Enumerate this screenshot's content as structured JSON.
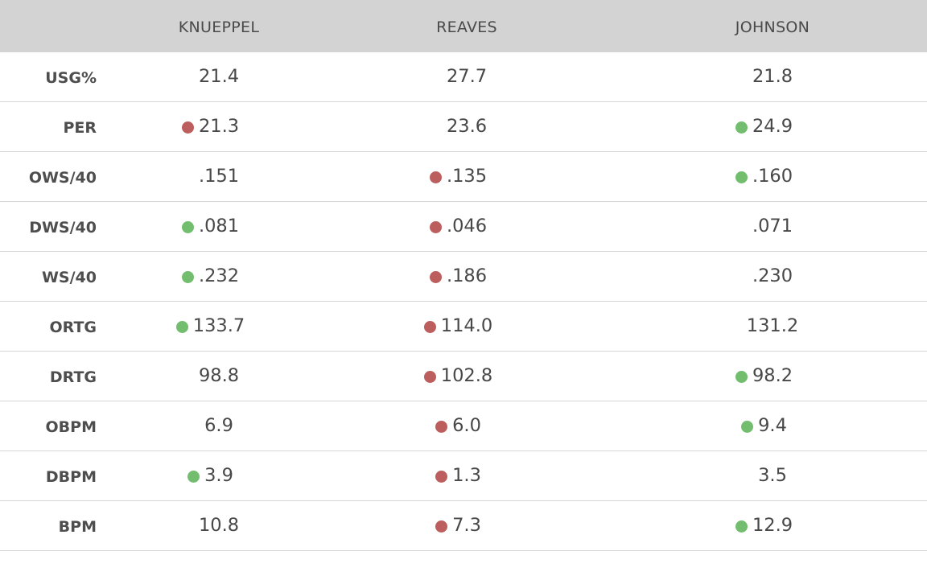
{
  "columns": [
    {
      "key": "knueppel",
      "label": "KNUEPPEL"
    },
    {
      "key": "reaves",
      "label": "REAVES"
    },
    {
      "key": "johnson",
      "label": "JOHNSON"
    }
  ],
  "colors": {
    "header_bg": "#d3d3d3",
    "good": "#72be6e",
    "bad": "#bd5e5e"
  },
  "rows": [
    {
      "label": "USG%",
      "cells": [
        {
          "value": "21.4",
          "indicator": "none"
        },
        {
          "value": "27.7",
          "indicator": "none"
        },
        {
          "value": "21.8",
          "indicator": "none"
        }
      ]
    },
    {
      "label": "PER",
      "cells": [
        {
          "value": "21.3",
          "indicator": "bad"
        },
        {
          "value": "23.6",
          "indicator": "none"
        },
        {
          "value": "24.9",
          "indicator": "good"
        }
      ]
    },
    {
      "label": "OWS/40",
      "cells": [
        {
          "value": ".151",
          "indicator": "none"
        },
        {
          "value": ".135",
          "indicator": "bad"
        },
        {
          "value": ".160",
          "indicator": "good"
        }
      ]
    },
    {
      "label": "DWS/40",
      "cells": [
        {
          "value": ".081",
          "indicator": "good"
        },
        {
          "value": ".046",
          "indicator": "bad"
        },
        {
          "value": ".071",
          "indicator": "none"
        }
      ]
    },
    {
      "label": "WS/40",
      "cells": [
        {
          "value": ".232",
          "indicator": "good"
        },
        {
          "value": ".186",
          "indicator": "bad"
        },
        {
          "value": ".230",
          "indicator": "none"
        }
      ]
    },
    {
      "label": "ORTG",
      "cells": [
        {
          "value": "133.7",
          "indicator": "good"
        },
        {
          "value": "114.0",
          "indicator": "bad"
        },
        {
          "value": "131.2",
          "indicator": "none"
        }
      ]
    },
    {
      "label": "DRTG",
      "cells": [
        {
          "value": "98.8",
          "indicator": "none"
        },
        {
          "value": "102.8",
          "indicator": "bad"
        },
        {
          "value": "98.2",
          "indicator": "good"
        }
      ]
    },
    {
      "label": "OBPM",
      "cells": [
        {
          "value": "6.9",
          "indicator": "none"
        },
        {
          "value": "6.0",
          "indicator": "bad"
        },
        {
          "value": "9.4",
          "indicator": "good"
        }
      ]
    },
    {
      "label": "DBPM",
      "cells": [
        {
          "value": "3.9",
          "indicator": "good"
        },
        {
          "value": "1.3",
          "indicator": "bad"
        },
        {
          "value": "3.5",
          "indicator": "none"
        }
      ]
    },
    {
      "label": "BPM",
      "cells": [
        {
          "value": "10.8",
          "indicator": "none"
        },
        {
          "value": "7.3",
          "indicator": "bad"
        },
        {
          "value": "12.9",
          "indicator": "good"
        }
      ]
    }
  ]
}
